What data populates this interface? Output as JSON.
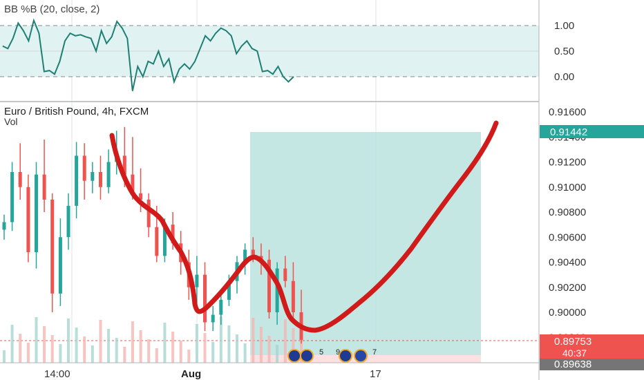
{
  "indicator": {
    "title": "BB %B (20, close, 2)",
    "levels": [
      "1.00",
      "0.50",
      "0.00"
    ]
  },
  "main": {
    "title": "Euro / British Pound, 4h, FXCM",
    "vol_label": "Vol",
    "price_ticks": [
      "0.91600",
      "0.91400",
      "0.91200",
      "0.91000",
      "0.90800",
      "0.90600",
      "0.90400",
      "0.90200",
      "0.90000",
      "0.89800"
    ],
    "x_ticks": [
      "14:00",
      "Aug",
      "17"
    ],
    "price_tags": {
      "current": "0.91442",
      "last": "0.89753",
      "countdown": "40:37",
      "stop": "0.89638"
    },
    "event_labels": [
      "5",
      "9",
      "7"
    ]
  },
  "colors": {
    "up": "#26a69a",
    "down": "#ef5350",
    "indicator_line": "#1e7f74",
    "band_fill": "#e0f2f1",
    "target_zone": "#b2dfdb",
    "stop_zone": "#fde0e0",
    "drawing": "#d11a1a",
    "tag_green": "#26a69a",
    "tag_red": "#ef5350",
    "tag_grey": "#757575"
  },
  "chart_data": [
    {
      "type": "line",
      "title": "BB %B (20, close, 2)",
      "ylim": [
        -0.35,
        1.35
      ],
      "hlines": [
        1.0,
        0.5,
        0.0
      ],
      "x": [
        1,
        3,
        5,
        7,
        9,
        11,
        13,
        15,
        17,
        19,
        21,
        23,
        25,
        27,
        29,
        31,
        33,
        35,
        37,
        39,
        41,
        43,
        45,
        47,
        49,
        51,
        53,
        55,
        57,
        59,
        61,
        63,
        65,
        67,
        69,
        71,
        73,
        75,
        77,
        79,
        81,
        83,
        85,
        87,
        89,
        91,
        93,
        95,
        97,
        99,
        101,
        103,
        105,
        107,
        109,
        111,
        113,
        115,
        117
      ],
      "values": [
        0.6,
        0.55,
        0.75,
        1.05,
        0.9,
        0.7,
        1.1,
        0.85,
        0.1,
        0.12,
        0.05,
        0.3,
        0.7,
        0.85,
        0.8,
        0.82,
        0.78,
        0.75,
        0.5,
        0.9,
        0.65,
        0.78,
        1.08,
        0.95,
        0.75,
        -0.28,
        0.2,
        0.0,
        0.3,
        0.25,
        0.5,
        0.2,
        0.35,
        -0.1,
        0.15,
        0.25,
        0.15,
        0.3,
        0.55,
        0.8,
        0.7,
        0.85,
        0.95,
        0.9,
        0.8,
        0.45,
        0.6,
        0.7,
        0.55,
        0.5,
        0.1,
        0.12,
        0.05,
        0.2,
        0.0,
        -0.1,
        0.0,
        null,
        null
      ]
    },
    {
      "type": "candlestick",
      "title": "Euro / British Pound, 4h, FXCM",
      "ylim": [
        0.8952,
        0.9168
      ],
      "x_categories": [
        "14:00",
        "Aug",
        "17"
      ],
      "candles": [
        {
          "o": 0.9066,
          "h": 0.9078,
          "l": 0.9058,
          "c": 0.9072
        },
        {
          "o": 0.9072,
          "h": 0.912,
          "l": 0.9065,
          "c": 0.9112
        },
        {
          "o": 0.9112,
          "h": 0.9135,
          "l": 0.909,
          "c": 0.91
        },
        {
          "o": 0.91,
          "h": 0.911,
          "l": 0.904,
          "c": 0.9048
        },
        {
          "o": 0.9048,
          "h": 0.912,
          "l": 0.9035,
          "c": 0.911
        },
        {
          "o": 0.911,
          "h": 0.9138,
          "l": 0.908,
          "c": 0.909
        },
        {
          "o": 0.909,
          "h": 0.9095,
          "l": 0.9,
          "c": 0.9015
        },
        {
          "o": 0.9015,
          "h": 0.9075,
          "l": 0.9005,
          "c": 0.906
        },
        {
          "o": 0.906,
          "h": 0.9095,
          "l": 0.905,
          "c": 0.9085
        },
        {
          "o": 0.9085,
          "h": 0.9136,
          "l": 0.9075,
          "c": 0.9125
        },
        {
          "o": 0.9125,
          "h": 0.9135,
          "l": 0.909,
          "c": 0.9105
        },
        {
          "o": 0.9105,
          "h": 0.912,
          "l": 0.9095,
          "c": 0.9112
        },
        {
          "o": 0.9112,
          "h": 0.9125,
          "l": 0.909,
          "c": 0.91
        },
        {
          "o": 0.91,
          "h": 0.913,
          "l": 0.9095,
          "c": 0.912
        },
        {
          "o": 0.912,
          "h": 0.9145,
          "l": 0.911,
          "c": 0.9125
        },
        {
          "o": 0.9125,
          "h": 0.9148,
          "l": 0.91,
          "c": 0.911
        },
        {
          "o": 0.911,
          "h": 0.914,
          "l": 0.909,
          "c": 0.9095
        },
        {
          "o": 0.9095,
          "h": 0.9115,
          "l": 0.908,
          "c": 0.909
        },
        {
          "o": 0.909,
          "h": 0.9095,
          "l": 0.906,
          "c": 0.9068
        },
        {
          "o": 0.9068,
          "h": 0.9085,
          "l": 0.904,
          "c": 0.9045
        },
        {
          "o": 0.9045,
          "h": 0.9075,
          "l": 0.904,
          "c": 0.907
        },
        {
          "o": 0.907,
          "h": 0.908,
          "l": 0.905,
          "c": 0.9055
        },
        {
          "o": 0.9055,
          "h": 0.9065,
          "l": 0.903,
          "c": 0.904
        },
        {
          "o": 0.904,
          "h": 0.905,
          "l": 0.901,
          "c": 0.902
        },
        {
          "o": 0.902,
          "h": 0.9045,
          "l": 0.9,
          "c": 0.903
        },
        {
          "o": 0.903,
          "h": 0.904,
          "l": 0.8985,
          "c": 0.8992
        },
        {
          "o": 0.8992,
          "h": 0.9005,
          "l": 0.8985,
          "c": 0.8998
        },
        {
          "o": 0.8998,
          "h": 0.9015,
          "l": 0.899,
          "c": 0.901
        },
        {
          "o": 0.901,
          "h": 0.903,
          "l": 0.9005,
          "c": 0.9025
        },
        {
          "o": 0.9025,
          "h": 0.9045,
          "l": 0.9015,
          "c": 0.904
        },
        {
          "o": 0.904,
          "h": 0.9055,
          "l": 0.903,
          "c": 0.905
        },
        {
          "o": 0.905,
          "h": 0.906,
          "l": 0.904,
          "c": 0.9045
        },
        {
          "o": 0.9045,
          "h": 0.9055,
          "l": 0.903,
          "c": 0.9042
        },
        {
          "o": 0.9042,
          "h": 0.905,
          "l": 0.8995,
          "c": 0.9
        },
        {
          "o": 0.9,
          "h": 0.904,
          "l": 0.899,
          "c": 0.9035
        },
        {
          "o": 0.9035,
          "h": 0.9045,
          "l": 0.902,
          "c": 0.9025
        },
        {
          "o": 0.9025,
          "h": 0.904,
          "l": 0.8995,
          "c": 0.9
        },
        {
          "o": 0.9,
          "h": 0.9018,
          "l": 0.8975,
          "c": 0.8978
        }
      ]
    }
  ]
}
